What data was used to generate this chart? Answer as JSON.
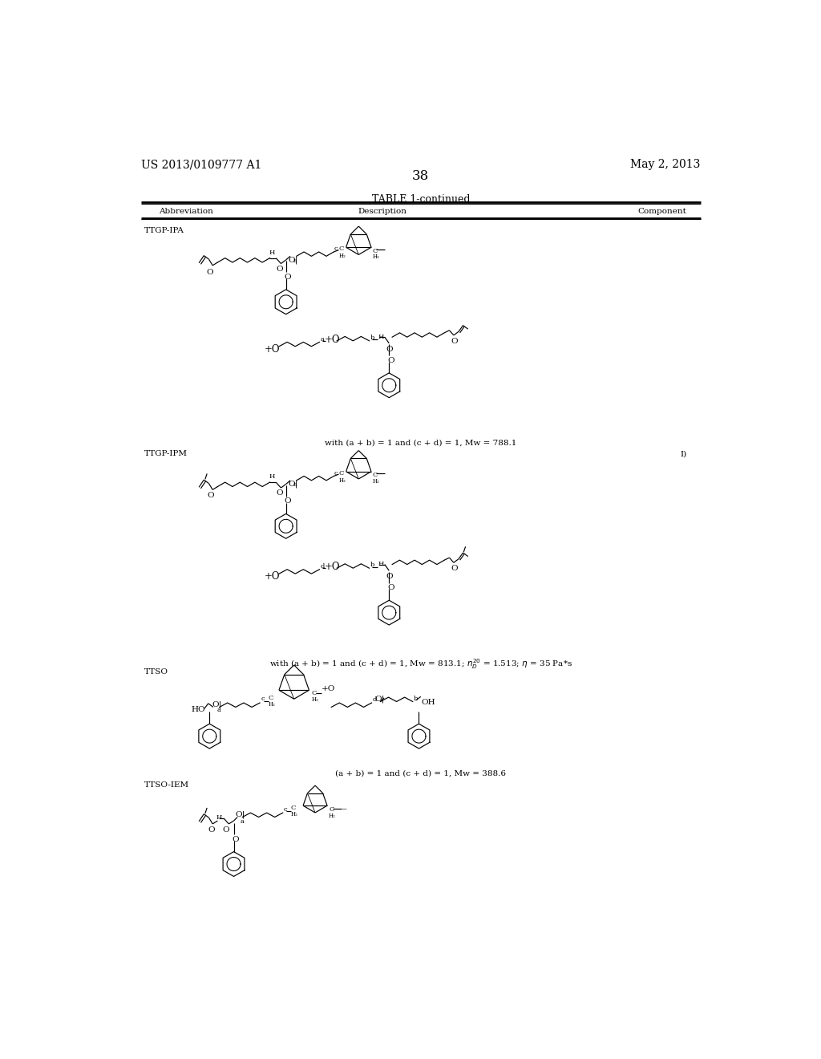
{
  "page_number": "38",
  "patent_number": "US 2013/0109777 A1",
  "date": "May 2, 2013",
  "table_title": "TABLE 1-continued",
  "col_abbrev": "Abbreviation",
  "col_desc": "Description",
  "col_comp": "Component",
  "row1_abbrev": "TTGP-IPA",
  "row1_caption": "with (a + b) = 1 and (c + d) = 1, Mw = 788.1",
  "row2_abbrev": "TTGP-IPM",
  "row2_caption": "with (a + b) = 1 and (c + d) = 1, Mw = 813.1; n",
  "row2_caption2": " = 1.513; ",
  "row2_comp": "I)",
  "row3_abbrev": "TTSO",
  "row3_caption": "(a + b) = 1 and (c + d) = 1, Mw = 388.6",
  "row4_abbrev": "TTSO-IEM",
  "bg_color": "#ffffff"
}
